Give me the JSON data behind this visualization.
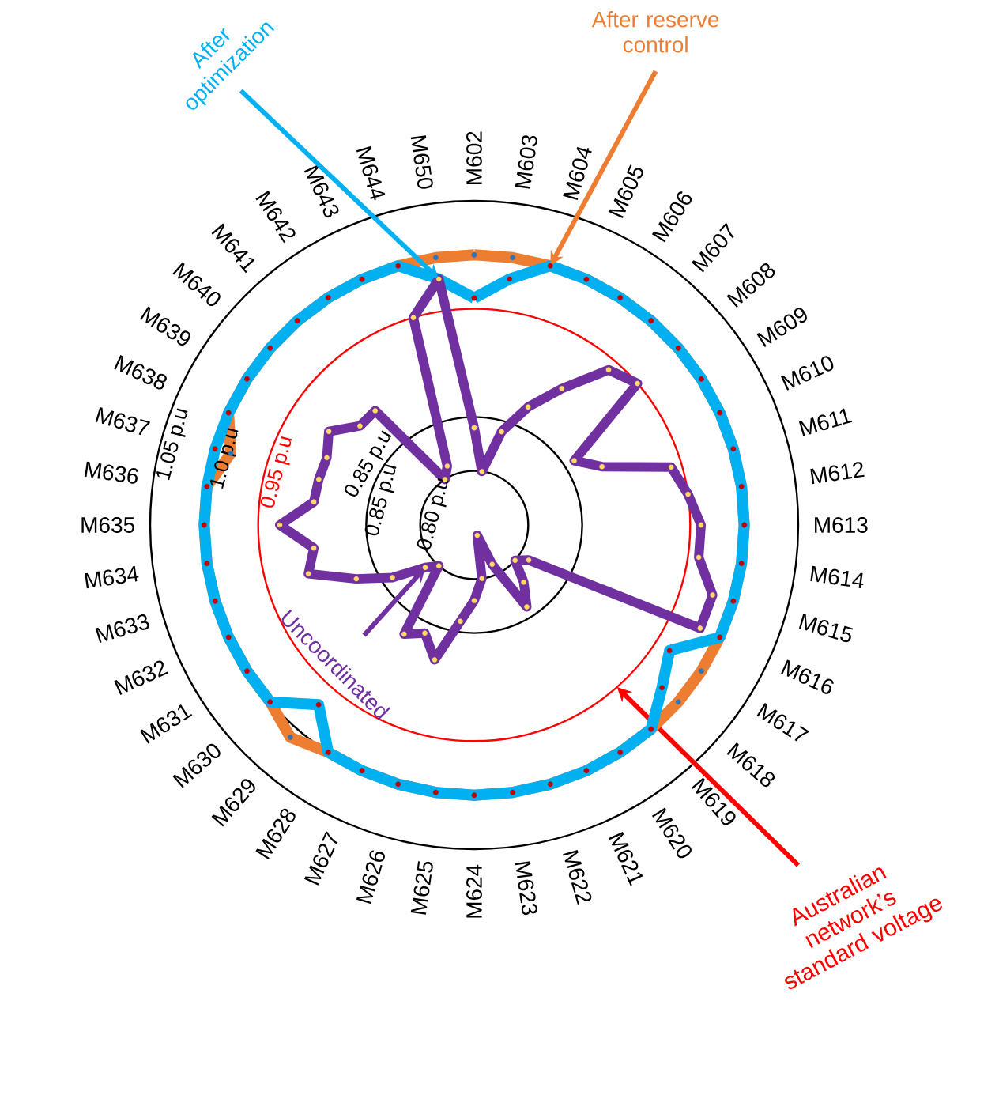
{
  "chart_data": {
    "type": "radar",
    "categories": [
      "M602",
      "M603",
      "M604",
      "M605",
      "M606",
      "M607",
      "M608",
      "M609",
      "M610",
      "M611",
      "M612",
      "M613",
      "M614",
      "M615",
      "M616",
      "M617",
      "M618",
      "M619",
      "M620",
      "M621",
      "M622",
      "M623",
      "M624",
      "M625",
      "M626",
      "M627",
      "M628",
      "M629",
      "M630",
      "M631",
      "M632",
      "M633",
      "M634",
      "M635",
      "M636",
      "M637",
      "M638",
      "M639",
      "M640",
      "M641",
      "M642",
      "M643",
      "M644",
      "M650"
    ],
    "series": [
      {
        "name": "After reserve control",
        "color": "#ed7d31",
        "values": [
          1.0,
          1.0,
          1.0,
          1.0,
          1.0,
          1.0,
          1.0,
          1.0,
          1.0,
          1.0,
          1.0,
          1.0,
          1.0,
          1.0,
          1.0,
          1.0,
          1.0,
          1.0,
          1.0,
          1.0,
          1.0,
          1.0,
          1.0,
          1.0,
          1.0,
          1.0,
          1.0,
          1.01,
          1.0,
          1.0,
          1.0,
          1.0,
          1.0,
          1.0,
          1.0,
          0.985,
          1.0,
          1.0,
          1.0,
          1.0,
          1.0,
          1.0,
          1.0,
          1.0
        ]
      },
      {
        "name": "After optimization",
        "color": "#00b0f0",
        "values": [
          0.96,
          0.98,
          1.0,
          1.0,
          1.0,
          1.0,
          1.0,
          1.0,
          1.0,
          1.0,
          1.0,
          1.0,
          1.0,
          1.0,
          1.0,
          0.965,
          0.98,
          1.0,
          1.0,
          1.0,
          1.0,
          1.0,
          1.0,
          1.0,
          1.0,
          1.0,
          1.0,
          0.97,
          1.0,
          1.0,
          1.0,
          1.0,
          1.0,
          1.0,
          1.0,
          1.0,
          1.0,
          1.0,
          1.0,
          1.0,
          1.0,
          1.0,
          1.0,
          0.98
        ]
      },
      {
        "name": "Uncoordinated",
        "color": "#7030a0",
        "values": [
          0.84,
          0.8,
          0.84,
          0.87,
          0.9,
          0.94,
          0.95,
          0.86,
          0.88,
          0.94,
          0.95,
          0.96,
          0.96,
          0.98,
          0.98,
          0.81,
          0.8,
          0.82,
          0.84,
          0.79,
          0.76,
          0.8,
          0.82,
          0.84,
          0.88,
          0.86,
          0.87,
          0.8,
          0.81,
          0.84,
          0.87,
          0.91,
          0.9,
          0.93,
          0.9,
          0.9,
          0.9,
          0.91,
          0.89,
          0.89,
          0.8,
          0.81,
          0.95,
          0.98
        ]
      }
    ],
    "ylim": [
      0.75,
      1.05
    ],
    "yticks": [
      {
        "value": 0.8,
        "label": "0.80 p.u"
      },
      {
        "value": 0.85,
        "label": "0.85 p.u"
      },
      {
        "value": 0.95,
        "label": "0.95 p.u"
      },
      {
        "value": 1.0,
        "label": "1.0 p.u"
      },
      {
        "value": 1.05,
        "label": "1.05 p.u"
      }
    ],
    "grid": true,
    "marker": "circle",
    "line_style": "solid",
    "annotations": [
      "0.85 p.u",
      "Australian network’s standard voltage"
    ]
  }
}
